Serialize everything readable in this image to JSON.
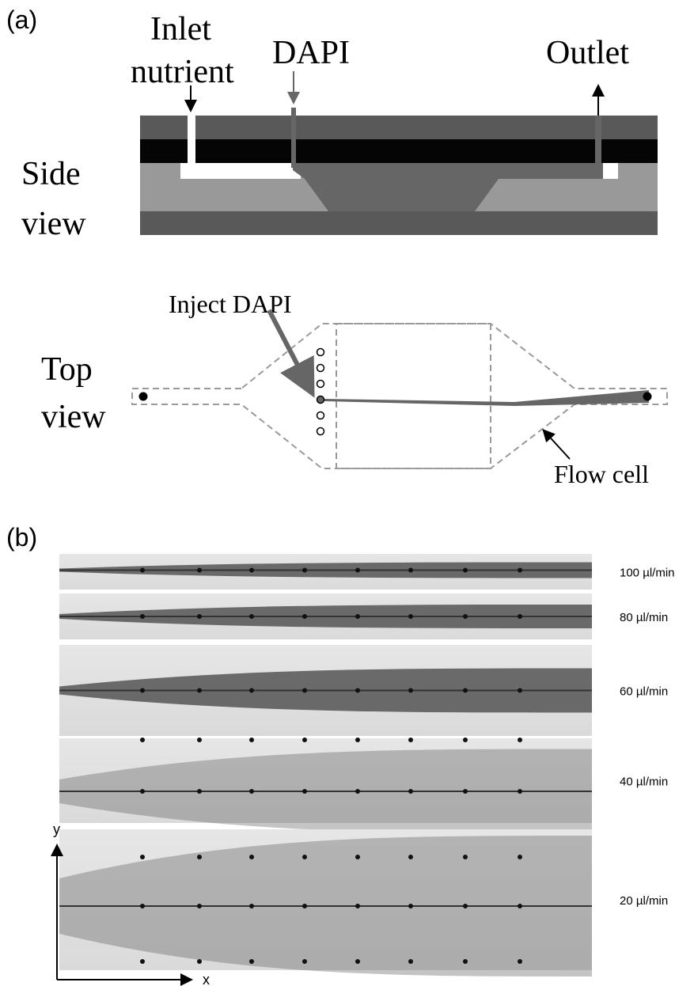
{
  "panel_a": {
    "label": "(a)",
    "side_view": {
      "title_lines": [
        "Side",
        "view"
      ],
      "inlet_lines": [
        "Inlet",
        "nutrient"
      ],
      "dapi": "DAPI",
      "outlet": "Outlet"
    },
    "top_view": {
      "title_lines": [
        "Top",
        "view"
      ],
      "inject": "Inject DAPI",
      "flow_cell": "Flow cell"
    }
  },
  "panel_b": {
    "label": "(b)",
    "strips": [
      "100 µl/min",
      "80 µl/min",
      "60 µl/min",
      "40 µl/min",
      "20 µl/min"
    ],
    "axis_y": "y",
    "axis_x": "x"
  }
}
